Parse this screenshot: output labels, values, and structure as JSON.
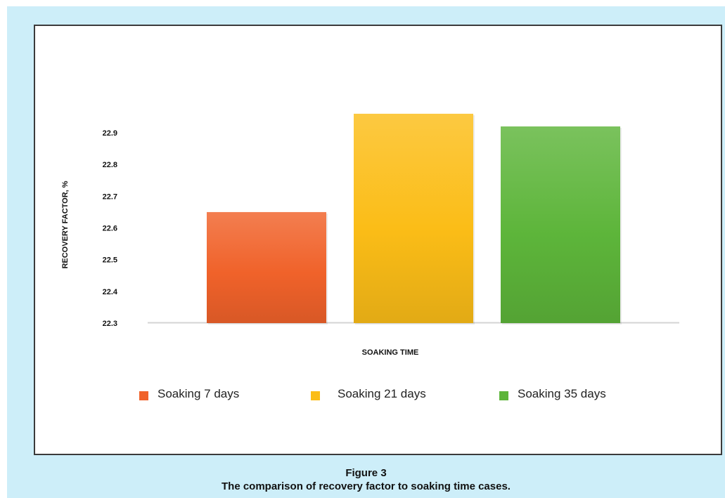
{
  "figure": {
    "label": "Figure 3",
    "caption": "The comparison of recovery factor to soaking time cases."
  },
  "chart_data": {
    "type": "bar",
    "categories": [
      "Soaking 7 days",
      "Soaking 21 days",
      "Soaking 35 days"
    ],
    "values": [
      22.65,
      22.96,
      22.92
    ],
    "colors": [
      "#f0622a",
      "#fbbd17",
      "#5db53a"
    ],
    "title": "",
    "xlabel": "SOAKING TIME",
    "ylabel": "RECOVERY FACTOR, %",
    "ylim": [
      22.3,
      23.0
    ],
    "yticks": [
      22.3,
      22.4,
      22.5,
      22.6,
      22.7,
      22.8,
      22.9
    ],
    "ytick_labels": [
      "22.3",
      "22.4",
      "22.5",
      "22.6",
      "22.7",
      "22.8",
      "22.9"
    ],
    "grid": false,
    "legend_position": "bottom"
  }
}
